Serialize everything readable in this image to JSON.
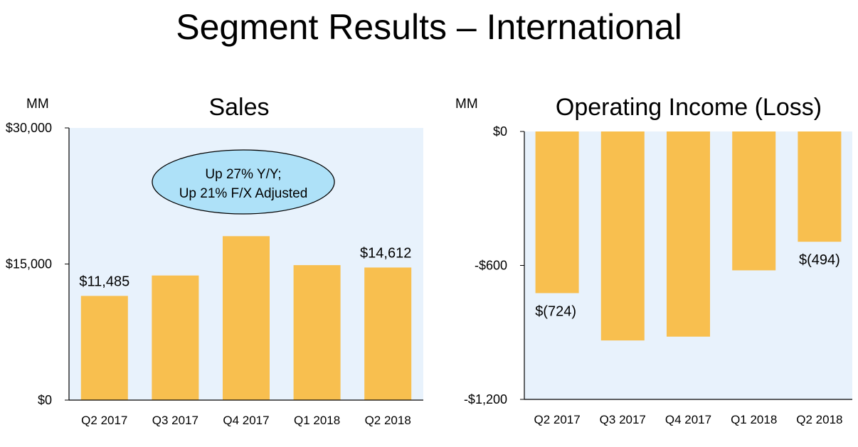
{
  "page": {
    "title": "Segment Results – International"
  },
  "colors": {
    "bar": "#F8BF4F",
    "plot_background": "#E8F2FC",
    "callout_fill": "#AEE1F8",
    "axis": "#000000"
  },
  "chart_data": [
    {
      "type": "bar",
      "title": "Sales",
      "unit_label": "MM",
      "categories": [
        "Q2 2017",
        "Q3 2017",
        "Q4 2017",
        "Q1 2018",
        "Q2 2018"
      ],
      "values": [
        11485,
        13734,
        18070,
        14875,
        14612
      ],
      "ylim": [
        0,
        30000
      ],
      "yticks": [
        0,
        15000,
        30000
      ],
      "ytick_labels": [
        "$0",
        "$15,000",
        "$30,000"
      ],
      "data_labels": [
        {
          "index": 0,
          "text": "$11,485"
        },
        {
          "index": 4,
          "text": "$14,612"
        }
      ],
      "callout": {
        "lines": [
          "Up 27% Y/Y;",
          "Up 21% F/X Adjusted"
        ]
      },
      "grid": false
    },
    {
      "type": "bar",
      "title": "Operating Income (Loss)",
      "unit_label": "MM",
      "categories": [
        "Q2 2017",
        "Q3 2017",
        "Q4 2017",
        "Q1 2018",
        "Q2 2018"
      ],
      "values": [
        -724,
        -936,
        -919,
        -622,
        -494
      ],
      "ylim": [
        -1200,
        0
      ],
      "yticks": [
        0,
        -600,
        -1200
      ],
      "ytick_labels": [
        "$0",
        "-$600",
        "-$1,200"
      ],
      "data_labels": [
        {
          "index": 0,
          "text": "$(724)"
        },
        {
          "index": 4,
          "text": "$(494)"
        }
      ],
      "grid": false
    }
  ]
}
